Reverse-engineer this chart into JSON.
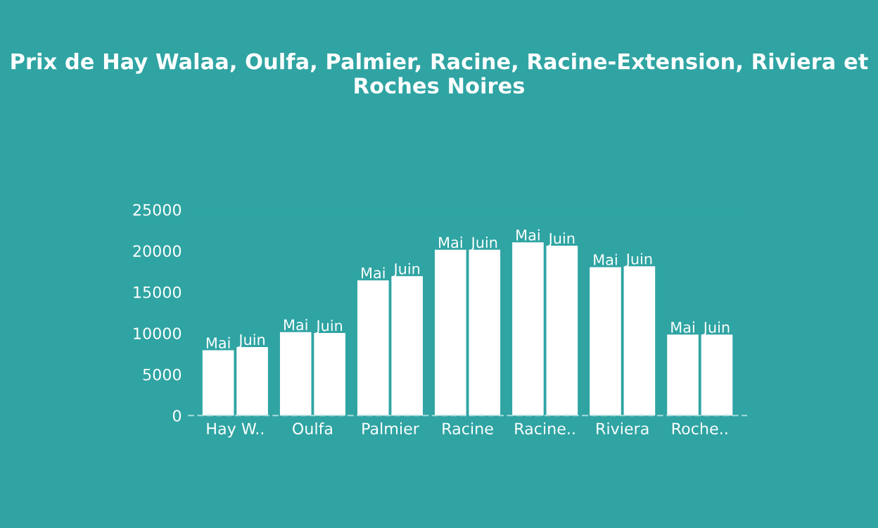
{
  "chart_data": {
    "type": "bar",
    "title": "Prix de Hay Walaa, Oulfa, Palmier, Racine, Racine-Extension, Riviera et Roches Noires",
    "categories": [
      "Hay W..",
      "Oulfa",
      "Palmier",
      "Racine",
      "Racine..",
      "Riviera",
      "Roche.."
    ],
    "series": [
      {
        "name": "Mai",
        "color": "#ffffff",
        "values": [
          7800,
          10000,
          16300,
          20000,
          20900,
          17900,
          9700
        ]
      },
      {
        "name": "Juin",
        "color": "#ffffff",
        "values": [
          8200,
          9900,
          16800,
          20000,
          20500,
          18000,
          9700
        ]
      }
    ],
    "ylim": [
      0,
      25000
    ],
    "yticks": [
      0,
      5000,
      10000,
      15000,
      20000,
      25000
    ],
    "grid": false,
    "legend": false
  }
}
